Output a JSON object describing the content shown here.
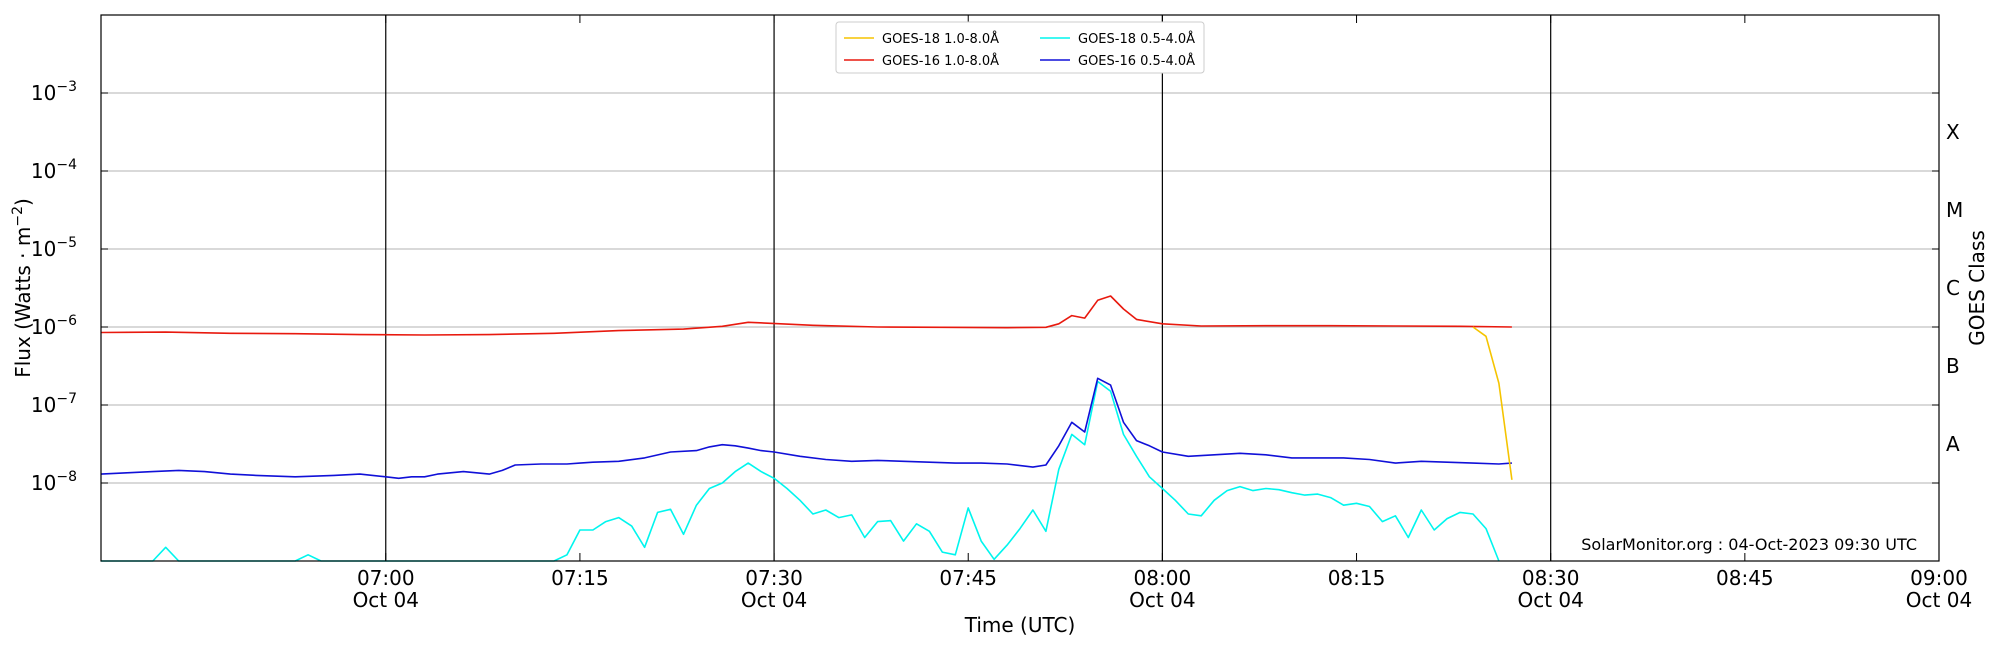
{
  "chart_data": {
    "type": "line",
    "xlabel": "Time (UTC)",
    "ylabel": "Flux (Watts · m",
    "ylabel_sup": "−2",
    "ylabel_close": ")",
    "right_label": "GOES Class",
    "y_scale": "log",
    "ylim": [
      1e-09,
      0.01
    ],
    "xlim": [
      "06:38",
      "09:00"
    ],
    "grid": "horizontal",
    "legend_position": "top-center",
    "watermark": "SolarMonitor.org : 04-Oct-2023 09:30 UTC",
    "x_ticks": [
      {
        "time": "07:00",
        "label": "07:00",
        "sub": "Oct 04",
        "major": true
      },
      {
        "time": "07:15",
        "label": "07:15",
        "sub": "",
        "major": false
      },
      {
        "time": "07:30",
        "label": "07:30",
        "sub": "Oct 04",
        "major": true
      },
      {
        "time": "07:45",
        "label": "07:45",
        "sub": "",
        "major": false
      },
      {
        "time": "08:00",
        "label": "08:00",
        "sub": "Oct 04",
        "major": true
      },
      {
        "time": "08:15",
        "label": "08:15",
        "sub": "",
        "major": false
      },
      {
        "time": "08:30",
        "label": "08:30",
        "sub": "Oct 04",
        "major": true
      },
      {
        "time": "08:45",
        "label": "08:45",
        "sub": "",
        "major": false
      },
      {
        "time": "09:00",
        "label": "09:00",
        "sub": "Oct 04",
        "major": true
      }
    ],
    "y_ticks": [
      {
        "exp": -3,
        "base": "10",
        "sup": "−3"
      },
      {
        "exp": -4,
        "base": "10",
        "sup": "−4"
      },
      {
        "exp": -5,
        "base": "10",
        "sup": "−5"
      },
      {
        "exp": -6,
        "base": "10",
        "sup": "−6"
      },
      {
        "exp": -7,
        "base": "10",
        "sup": "−7"
      },
      {
        "exp": -8,
        "base": "10",
        "sup": "−8"
      }
    ],
    "class_labels": [
      {
        "label": "X",
        "exp": -3.5
      },
      {
        "label": "M",
        "exp": -4.5
      },
      {
        "label": "C",
        "exp": -5.5
      },
      {
        "label": "B",
        "exp": -6.5
      },
      {
        "label": "A",
        "exp": -7.5
      }
    ],
    "series": [
      {
        "name": "GOES-18 1.0-8.0Å",
        "color": "#f5c400",
        "x": [
          "08:24",
          "08:25",
          "08:26",
          "08:27"
        ],
        "y": [
          1e-06,
          7.6e-07,
          1.9e-07,
          1.1e-08
        ]
      },
      {
        "name": "GOES-16 1.0-8.0Å",
        "color": "#e8190e",
        "x": [
          "06:38",
          "06:43",
          "06:48",
          "06:53",
          "06:58",
          "07:03",
          "07:08",
          "07:13",
          "07:18",
          "07:23",
          "07:26",
          "07:28",
          "07:33",
          "07:38",
          "07:43",
          "07:48",
          "07:51",
          "07:52",
          "07:53",
          "07:54",
          "07:55",
          "07:56",
          "07:57",
          "07:58",
          "08:00",
          "08:03",
          "08:08",
          "08:13",
          "08:18",
          "08:23",
          "08:27"
        ],
        "y": [
          8.5e-07,
          8.6e-07,
          8.3e-07,
          8.2e-07,
          8e-07,
          7.9e-07,
          8e-07,
          8.3e-07,
          9e-07,
          9.4e-07,
          1.02e-06,
          1.15e-06,
          1.05e-06,
          1e-06,
          9.9e-07,
          9.8e-07,
          9.9e-07,
          1.1e-06,
          1.4e-06,
          1.3e-06,
          2.2e-06,
          2.5e-06,
          1.7e-06,
          1.25e-06,
          1.1e-06,
          1.03e-06,
          1.04e-06,
          1.04e-06,
          1.03e-06,
          1.02e-06,
          1e-06
        ]
      },
      {
        "name": "GOES-18 0.5-4.0Å",
        "color": "#00f5ee",
        "x": [
          "06:38",
          "06:42",
          "06:43",
          "06:44",
          "06:48",
          "06:53",
          "06:54",
          "06:55",
          "06:58",
          "07:03",
          "07:08",
          "07:13",
          "07:14",
          "07:15",
          "07:16",
          "07:17",
          "07:18",
          "07:19",
          "07:20",
          "07:21",
          "07:22",
          "07:23",
          "07:24",
          "07:25",
          "07:26",
          "07:27",
          "07:28",
          "07:29",
          "07:30",
          "07:31",
          "07:32",
          "07:33",
          "07:34",
          "07:35",
          "07:36",
          "07:37",
          "07:38",
          "07:39",
          "07:40",
          "07:41",
          "07:42",
          "07:43",
          "07:44",
          "07:45",
          "07:46",
          "07:47",
          "07:48",
          "07:49",
          "07:50",
          "07:51",
          "07:52",
          "07:53",
          "07:54",
          "07:55",
          "07:56",
          "07:57",
          "07:58",
          "07:59",
          "08:00",
          "08:01",
          "08:02",
          "08:03",
          "08:04",
          "08:05",
          "08:06",
          "08:07",
          "08:08",
          "08:09",
          "08:10",
          "08:11",
          "08:12",
          "08:13",
          "08:14",
          "08:15",
          "08:16",
          "08:17",
          "08:18",
          "08:19",
          "08:20",
          "08:21",
          "08:22",
          "08:23",
          "08:24",
          "08:25",
          "08:26"
        ],
        "y": [
          1e-09,
          1e-09,
          1.5e-09,
          1e-09,
          1e-09,
          1e-09,
          1.2e-09,
          1e-09,
          1e-09,
          1e-09,
          1e-09,
          1e-09,
          1.2e-09,
          2.5e-09,
          2.5e-09,
          3.2e-09,
          3.6e-09,
          2.8e-09,
          1.5e-09,
          4.2e-09,
          4.6e-09,
          2.2e-09,
          5.2e-09,
          8.5e-09,
          1e-08,
          1.4e-08,
          1.8e-08,
          1.4e-08,
          1.15e-08,
          8.5e-09,
          6e-09,
          4e-09,
          4.5e-09,
          3.6e-09,
          3.9e-09,
          2e-09,
          3.2e-09,
          3.3e-09,
          1.8e-09,
          3e-09,
          2.4e-09,
          1.3e-09,
          1.2e-09,
          4.8e-09,
          1.8e-09,
          1.05e-09,
          1.6e-09,
          2.6e-09,
          4.5e-09,
          2.4e-09,
          1.5e-08,
          4.2e-08,
          3.1e-08,
          2e-07,
          1.5e-07,
          4.2e-08,
          2.2e-08,
          1.2e-08,
          8.5e-09,
          6e-09,
          4e-09,
          3.8e-09,
          6e-09,
          8e-09,
          9e-09,
          8e-09,
          8.5e-09,
          8.2e-09,
          7.5e-09,
          7e-09,
          7.2e-09,
          6.5e-09,
          5.2e-09,
          5.5e-09,
          5e-09,
          3.2e-09,
          3.8e-09,
          2e-09,
          4.5e-09,
          2.5e-09,
          3.5e-09,
          4.2e-09,
          4e-09,
          2.6e-09,
          1e-09
        ]
      },
      {
        "name": "GOES-16 0.5-4.0Å",
        "color": "#1010d8",
        "x": [
          "06:38",
          "06:40",
          "06:42",
          "06:44",
          "06:46",
          "06:48",
          "06:50",
          "06:53",
          "06:56",
          "06:58",
          "07:00",
          "07:01",
          "07:02",
          "07:03",
          "07:04",
          "07:05",
          "07:06",
          "07:07",
          "07:08",
          "07:09",
          "07:10",
          "07:12",
          "07:14",
          "07:15",
          "07:16",
          "07:18",
          "07:20",
          "07:22",
          "07:24",
          "07:25",
          "07:26",
          "07:27",
          "07:28",
          "07:29",
          "07:30",
          "07:32",
          "07:34",
          "07:36",
          "07:38",
          "07:40",
          "07:42",
          "07:44",
          "07:46",
          "07:48",
          "07:50",
          "07:51",
          "07:52",
          "07:53",
          "07:54",
          "07:55",
          "07:56",
          "07:57",
          "07:58",
          "07:59",
          "08:00",
          "08:02",
          "08:04",
          "08:06",
          "08:08",
          "08:10",
          "08:12",
          "08:14",
          "08:16",
          "08:18",
          "08:20",
          "08:22",
          "08:24",
          "08:26",
          "08:27"
        ],
        "y": [
          1.3e-08,
          1.35e-08,
          1.4e-08,
          1.45e-08,
          1.4e-08,
          1.3e-08,
          1.25e-08,
          1.2e-08,
          1.25e-08,
          1.3e-08,
          1.2e-08,
          1.15e-08,
          1.2e-08,
          1.2e-08,
          1.3e-08,
          1.35e-08,
          1.4e-08,
          1.35e-08,
          1.3e-08,
          1.45e-08,
          1.7e-08,
          1.75e-08,
          1.75e-08,
          1.8e-08,
          1.85e-08,
          1.9e-08,
          2.1e-08,
          2.5e-08,
          2.6e-08,
          2.9e-08,
          3.1e-08,
          3e-08,
          2.8e-08,
          2.6e-08,
          2.5e-08,
          2.2e-08,
          2e-08,
          1.9e-08,
          1.95e-08,
          1.9e-08,
          1.85e-08,
          1.8e-08,
          1.8e-08,
          1.75e-08,
          1.6e-08,
          1.7e-08,
          3e-08,
          6e-08,
          4.5e-08,
          2.2e-07,
          1.8e-07,
          6e-08,
          3.5e-08,
          3e-08,
          2.5e-08,
          2.2e-08,
          2.3e-08,
          2.4e-08,
          2.3e-08,
          2.1e-08,
          2.1e-08,
          2.1e-08,
          2e-08,
          1.8e-08,
          1.9e-08,
          1.85e-08,
          1.8e-08,
          1.75e-08,
          1.8e-08
        ]
      }
    ]
  }
}
